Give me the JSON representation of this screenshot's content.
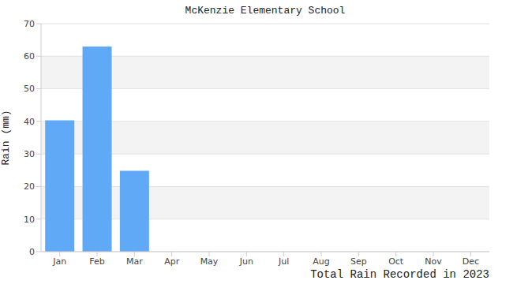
{
  "chart_data": {
    "type": "bar",
    "title": "McKenzie Elementary School",
    "y_label": "Rain (mm)",
    "x_label": "Total Rain Recorded in 2023",
    "categories": [
      "Jan",
      "Feb",
      "Mar",
      "Apr",
      "May",
      "Jun",
      "Jul",
      "Aug",
      "Sep",
      "Oct",
      "Nov",
      "Dec"
    ],
    "values": [
      40.3,
      63,
      24.8,
      null,
      null,
      null,
      null,
      null,
      null,
      null,
      null,
      null
    ],
    "color": "#60a9f6",
    "ylim": [
      0,
      70
    ],
    "yticks": [
      0,
      10,
      20,
      30,
      40,
      50,
      60,
      70
    ],
    "grid": true
  }
}
